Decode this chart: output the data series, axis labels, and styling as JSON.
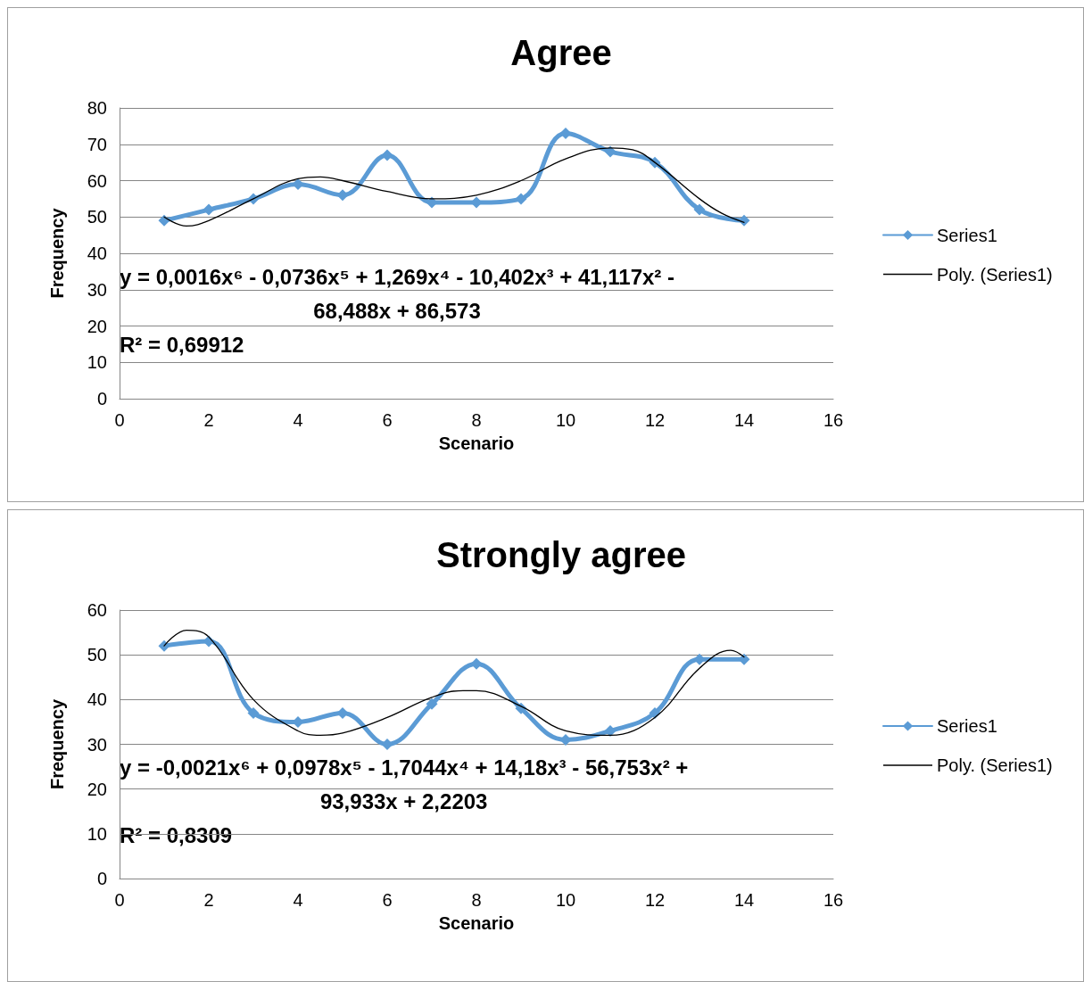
{
  "chart_data": [
    {
      "type": "line",
      "title": "Agree",
      "xlabel": "Scenario",
      "ylabel": "Frequency",
      "xlim": [
        0,
        16
      ],
      "xticks": [
        0,
        2,
        4,
        6,
        8,
        10,
        12,
        14,
        16
      ],
      "ylim": [
        0,
        80
      ],
      "yticks": [
        0,
        10,
        20,
        30,
        40,
        50,
        60,
        70,
        80
      ],
      "grid": "y",
      "legend": "right",
      "annotations": [
        "y = 0,0016x⁶ - 0,0736x⁵ + 1,269x⁴ - 10,402x³ + 41,117x² - 68,488x + 86,573",
        "R² = 0,69912"
      ],
      "series": [
        {
          "name": "Series1",
          "color": "#5b9bd5",
          "marker": "diamond",
          "x": [
            1,
            2,
            3,
            4,
            5,
            6,
            7,
            8,
            9,
            10,
            11,
            12,
            13,
            14
          ],
          "values": [
            49,
            52,
            55,
            59,
            56,
            67,
            54,
            54,
            55,
            73,
            68,
            65,
            52,
            49
          ]
        },
        {
          "name": "Poly. (Series1)",
          "color": "#000000",
          "marker": "none",
          "x": [
            1,
            1.5,
            2,
            3,
            4,
            4.5,
            5,
            6,
            7,
            8,
            9,
            10,
            11,
            11.5,
            12,
            13,
            13.5,
            14
          ],
          "values": [
            50,
            47.5,
            49,
            55,
            60.5,
            61,
            60,
            57,
            55,
            56,
            60,
            66,
            69,
            68.5,
            65,
            55,
            51,
            48.5
          ]
        }
      ]
    },
    {
      "type": "line",
      "title": "Strongly agree",
      "xlabel": "Scenario",
      "ylabel": "Frequency",
      "xlim": [
        0,
        16
      ],
      "xticks": [
        0,
        2,
        4,
        6,
        8,
        10,
        12,
        14,
        16
      ],
      "ylim": [
        0,
        60
      ],
      "yticks": [
        0,
        10,
        20,
        30,
        40,
        50,
        60
      ],
      "grid": "y",
      "legend": "right",
      "annotations": [
        "y = -0,0021x⁶ + 0,0978x⁵ - 1,7044x⁴ + 14,18x³ - 56,753x² + 93,933x + 2,2203",
        "R² = 0,8309"
      ],
      "series": [
        {
          "name": "Series1",
          "color": "#5b9bd5",
          "marker": "diamond",
          "x": [
            1,
            2,
            3,
            4,
            5,
            6,
            7,
            8,
            9,
            10,
            11,
            12,
            13,
            14
          ],
          "values": [
            52,
            53,
            37,
            35,
            37,
            30,
            39,
            48,
            38,
            31,
            33,
            37,
            49,
            49
          ]
        },
        {
          "name": "Poly. (Series1)",
          "color": "#000000",
          "marker": "none",
          "x": [
            1,
            1.5,
            2,
            3,
            4,
            4.5,
            5,
            6,
            7,
            7.7,
            8,
            9,
            10,
            11,
            12,
            13,
            13.7,
            14
          ],
          "values": [
            52,
            55.5,
            54,
            40,
            33,
            32,
            32.5,
            36,
            40.5,
            42,
            42,
            38.5,
            33,
            32,
            36,
            47,
            51,
            49.5
          ]
        }
      ]
    }
  ]
}
